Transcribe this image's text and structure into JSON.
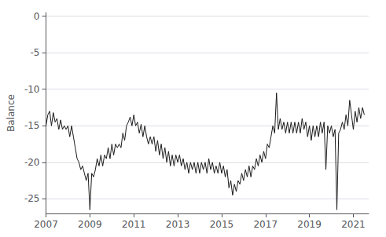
{
  "chart_data": {
    "type": "line",
    "ylabel": "Balance",
    "xlim": [
      2007.0,
      2021.7
    ],
    "xticks": [
      2007,
      2009,
      2011,
      2013,
      2015,
      2017,
      2019,
      2021
    ],
    "ylim": [
      -27,
      0.5
    ],
    "yticks": [
      0,
      -5,
      -10,
      -15,
      -20,
      -25
    ],
    "grid": true,
    "color": "#1a1a1a",
    "x": [
      2007.0,
      2007.083,
      2007.167,
      2007.25,
      2007.333,
      2007.417,
      2007.5,
      2007.583,
      2007.667,
      2007.75,
      2007.833,
      2007.917,
      2008.0,
      2008.083,
      2008.167,
      2008.25,
      2008.333,
      2008.417,
      2008.5,
      2008.583,
      2008.667,
      2008.75,
      2008.833,
      2008.917,
      2009.0,
      2009.083,
      2009.167,
      2009.25,
      2009.333,
      2009.417,
      2009.5,
      2009.583,
      2009.667,
      2009.75,
      2009.833,
      2009.917,
      2010.0,
      2010.083,
      2010.167,
      2010.25,
      2010.333,
      2010.417,
      2010.5,
      2010.583,
      2010.667,
      2010.75,
      2010.833,
      2010.917,
      2011.0,
      2011.083,
      2011.167,
      2011.25,
      2011.333,
      2011.417,
      2011.5,
      2011.583,
      2011.667,
      2011.75,
      2011.833,
      2011.917,
      2012.0,
      2012.083,
      2012.167,
      2012.25,
      2012.333,
      2012.417,
      2012.5,
      2012.583,
      2012.667,
      2012.75,
      2012.833,
      2012.917,
      2013.0,
      2013.083,
      2013.167,
      2013.25,
      2013.333,
      2013.417,
      2013.5,
      2013.583,
      2013.667,
      2013.75,
      2013.833,
      2013.917,
      2014.0,
      2014.083,
      2014.167,
      2014.25,
      2014.333,
      2014.417,
      2014.5,
      2014.583,
      2014.667,
      2014.75,
      2014.833,
      2014.917,
      2015.0,
      2015.083,
      2015.167,
      2015.25,
      2015.333,
      2015.417,
      2015.5,
      2015.583,
      2015.667,
      2015.75,
      2015.833,
      2015.917,
      2016.0,
      2016.083,
      2016.167,
      2016.25,
      2016.333,
      2016.417,
      2016.5,
      2016.583,
      2016.667,
      2016.75,
      2016.833,
      2016.917,
      2017.0,
      2017.083,
      2017.167,
      2017.25,
      2017.333,
      2017.417,
      2017.5,
      2017.583,
      2017.667,
      2017.75,
      2017.833,
      2017.917,
      2018.0,
      2018.083,
      2018.167,
      2018.25,
      2018.333,
      2018.417,
      2018.5,
      2018.583,
      2018.667,
      2018.75,
      2018.833,
      2018.917,
      2019.0,
      2019.083,
      2019.167,
      2019.25,
      2019.333,
      2019.417,
      2019.5,
      2019.583,
      2019.667,
      2019.75,
      2019.833,
      2019.917,
      2020.0,
      2020.083,
      2020.167,
      2020.25,
      2020.333,
      2020.417,
      2020.5,
      2020.583,
      2020.667,
      2020.75,
      2020.833,
      2020.917,
      2021.0,
      2021.083,
      2021.167,
      2021.25,
      2021.333,
      2021.417,
      2021.5
    ],
    "values": [
      -15.0,
      -13.5,
      -13.0,
      -15.0,
      -13.2,
      -14.5,
      -14.0,
      -15.5,
      -14.2,
      -15.5,
      -15.0,
      -15.5,
      -15.0,
      -16.5,
      -15.0,
      -16.5,
      -18.0,
      -19.5,
      -20.0,
      -21.0,
      -20.5,
      -21.5,
      -22.5,
      -21.5,
      -26.5,
      -21.5,
      -22.0,
      -21.0,
      -19.5,
      -20.5,
      -19.0,
      -20.5,
      -19.0,
      -19.5,
      -18.0,
      -19.5,
      -17.5,
      -19.0,
      -17.5,
      -18.0,
      -17.5,
      -18.0,
      -16.0,
      -17.0,
      -15.0,
      -14.5,
      -13.8,
      -15.0,
      -13.5,
      -15.0,
      -14.5,
      -16.0,
      -14.8,
      -16.5,
      -15.0,
      -16.5,
      -17.5,
      -16.5,
      -17.5,
      -16.5,
      -18.5,
      -17.0,
      -19.0,
      -17.5,
      -19.5,
      -18.0,
      -20.0,
      -18.5,
      -20.5,
      -19.0,
      -20.5,
      -19.0,
      -20.0,
      -19.0,
      -20.5,
      -19.5,
      -21.0,
      -20.0,
      -21.5,
      -20.0,
      -21.0,
      -20.0,
      -21.5,
      -20.0,
      -21.5,
      -20.0,
      -21.0,
      -20.0,
      -21.5,
      -19.5,
      -21.0,
      -20.0,
      -21.5,
      -20.5,
      -21.5,
      -20.0,
      -21.5,
      -20.5,
      -22.0,
      -21.0,
      -23.5,
      -22.5,
      -24.5,
      -23.0,
      -24.0,
      -22.5,
      -23.0,
      -21.5,
      -22.5,
      -21.0,
      -22.0,
      -20.5,
      -22.0,
      -20.5,
      -21.0,
      -19.5,
      -20.5,
      -19.0,
      -20.0,
      -18.5,
      -19.5,
      -17.5,
      -18.0,
      -16.5,
      -15.0,
      -16.0,
      -10.5,
      -15.5,
      -14.0,
      -15.5,
      -14.5,
      -16.0,
      -14.5,
      -16.0,
      -14.5,
      -16.0,
      -14.5,
      -16.0,
      -14.5,
      -16.0,
      -14.0,
      -15.5,
      -14.5,
      -16.5,
      -15.0,
      -17.0,
      -15.0,
      -16.5,
      -15.0,
      -16.5,
      -14.5,
      -16.0,
      -14.5,
      -21.0,
      -15.0,
      -16.0,
      -15.0,
      -16.5,
      -15.5,
      -26.5,
      -16.0,
      -15.5,
      -14.5,
      -15.5,
      -13.5,
      -15.0,
      -11.5,
      -13.5,
      -15.5,
      -13.0,
      -14.5,
      -12.5,
      -14.0,
      -12.5,
      -13.5
    ]
  }
}
